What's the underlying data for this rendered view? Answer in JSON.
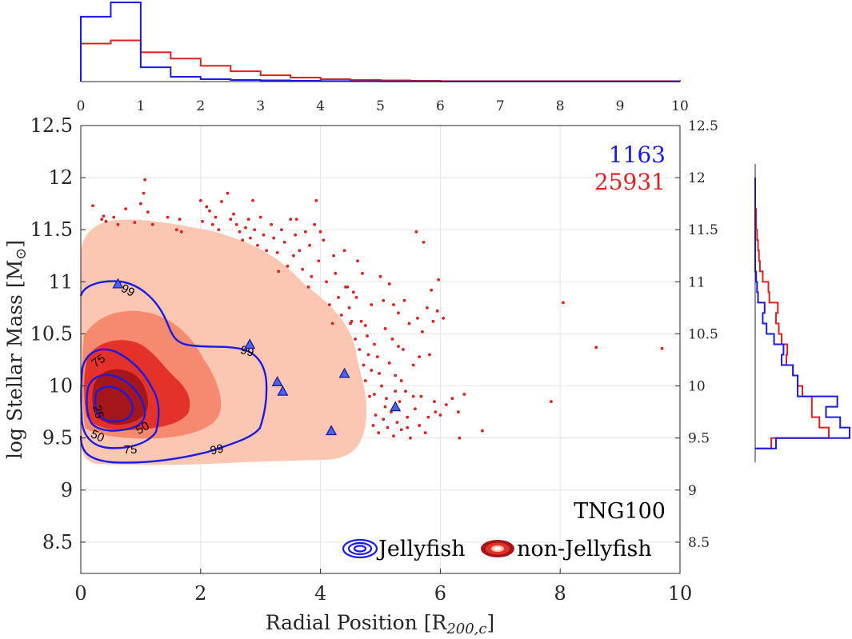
{
  "chart_data": {
    "type": "scatter",
    "xlabel": "Radial Position [R",
    "xlabel_sub": "200,c",
    "xlabel_close": "]",
    "ylabel": "log Stellar Mass [M",
    "ylabel_close": "]",
    "xlim": [
      0,
      10
    ],
    "ylim": [
      8.2,
      12.5
    ],
    "x_ticks": [
      "0",
      "2",
      "4",
      "6",
      "8",
      "10"
    ],
    "y_ticks": [
      "12.5",
      "12",
      "11.5",
      "11",
      "10.5",
      "10",
      "9.5",
      "9",
      "8.5"
    ],
    "top_hist_ticks": [
      "0",
      "1",
      "2",
      "3",
      "4",
      "5",
      "6",
      "7",
      "8",
      "9",
      "10"
    ],
    "right_ticks": [
      "12.5",
      "12",
      "11.5",
      "11",
      "10.5",
      "10",
      "9.5",
      "9",
      "8.5"
    ],
    "grid": true,
    "counts": {
      "jellyfish": "1163",
      "non_jellyfish": "25931"
    },
    "annotation": "TNG100",
    "legend": {
      "jellyfish": "Jellyfish",
      "non_jellyfish": "non-Jellyfish",
      "placement": "bottom-right"
    },
    "colors": {
      "jellyfish": "#1a1ae6",
      "non_jellyfish": "#e01f1f",
      "fill_outer": "#fbc6b2",
      "fill_2": "#f58a6f",
      "fill_3": "#e4322b",
      "fill_inner": "#a5161a",
      "grid": "#e4e4e4"
    },
    "contour_labels": [
      "99",
      "99",
      "99",
      "75",
      "75",
      "50",
      "50",
      "25"
    ],
    "series": [
      {
        "name": "non-Jellyfish",
        "points": [
          [
            0.2,
            11.73
          ],
          [
            0.35,
            11.6
          ],
          [
            0.38,
            11.63
          ],
          [
            0.42,
            11.58
          ],
          [
            0.55,
            11.62
          ],
          [
            0.62,
            11.55
          ],
          [
            0.75,
            11.7
          ],
          [
            0.9,
            11.57
          ],
          [
            1.0,
            11.75
          ],
          [
            1.05,
            11.85
          ],
          [
            1.07,
            11.98
          ],
          [
            1.12,
            11.67
          ],
          [
            1.2,
            11.55
          ],
          [
            1.45,
            11.62
          ],
          [
            1.6,
            11.5
          ],
          [
            1.65,
            11.6
          ],
          [
            1.68,
            11.48
          ],
          [
            2.0,
            11.78
          ],
          [
            2.03,
            11.58
          ],
          [
            2.1,
            11.72
          ],
          [
            2.15,
            11.68
          ],
          [
            2.2,
            11.55
          ],
          [
            2.25,
            11.62
          ],
          [
            2.3,
            11.5
          ],
          [
            2.35,
            11.77
          ],
          [
            2.45,
            11.85
          ],
          [
            2.5,
            11.6
          ],
          [
            2.6,
            11.55
          ],
          [
            2.65,
            11.48
          ],
          [
            2.75,
            11.52
          ],
          [
            2.8,
            11.6
          ],
          [
            2.83,
            11.42
          ],
          [
            2.87,
            11.78
          ],
          [
            2.9,
            11.5
          ],
          [
            2.95,
            11.35
          ],
          [
            3.05,
            11.45
          ],
          [
            3.1,
            11.3
          ],
          [
            3.18,
            11.55
          ],
          [
            3.22,
            11.42
          ],
          [
            3.28,
            11.28
          ],
          [
            3.35,
            11.5
          ],
          [
            3.4,
            11.38
          ],
          [
            3.45,
            11.15
          ],
          [
            3.5,
            11.6
          ],
          [
            3.55,
            11.25
          ],
          [
            3.58,
            11.45
          ],
          [
            3.65,
            11.3
          ],
          [
            3.7,
            11.12
          ],
          [
            3.75,
            11.48
          ],
          [
            3.82,
            11.35
          ],
          [
            3.85,
            11.05
          ],
          [
            3.9,
            11.55
          ],
          [
            3.93,
            11.78
          ],
          [
            3.97,
            11.2
          ],
          [
            4.05,
            11.4
          ],
          [
            4.1,
            11.0
          ],
          [
            4.15,
            10.78
          ],
          [
            4.22,
            11.25
          ],
          [
            4.25,
            11.08
          ],
          [
            4.3,
            10.85
          ],
          [
            4.35,
            10.68
          ],
          [
            4.4,
            11.3
          ],
          [
            4.42,
            10.95
          ],
          [
            4.48,
            10.75
          ],
          [
            4.5,
            10.6
          ],
          [
            4.55,
            10.9
          ],
          [
            4.58,
            10.45
          ],
          [
            4.62,
            11.2
          ],
          [
            4.65,
            10.35
          ],
          [
            4.68,
            10.62
          ],
          [
            4.72,
            10.2
          ],
          [
            4.75,
            10.05
          ],
          [
            4.78,
            10.48
          ],
          [
            4.8,
            10.3
          ],
          [
            4.82,
            9.9
          ],
          [
            4.85,
            10.15
          ],
          [
            4.88,
            9.62
          ],
          [
            4.9,
            10.4
          ],
          [
            4.92,
            9.72
          ],
          [
            4.95,
            10.28
          ],
          [
            4.97,
            9.55
          ],
          [
            5.0,
            11.05
          ],
          [
            5.02,
            10.0
          ],
          [
            5.05,
            9.68
          ],
          [
            5.08,
            10.55
          ],
          [
            5.1,
            9.88
          ],
          [
            5.12,
            9.6
          ],
          [
            5.15,
            10.22
          ],
          [
            5.18,
            9.75
          ],
          [
            5.2,
            10.45
          ],
          [
            5.22,
            9.52
          ],
          [
            5.25,
            10.1
          ],
          [
            5.28,
            9.65
          ],
          [
            5.3,
            10.7
          ],
          [
            5.32,
            9.85
          ],
          [
            5.35,
            9.58
          ],
          [
            5.38,
            10.35
          ],
          [
            5.4,
            10.82
          ],
          [
            5.42,
            9.95
          ],
          [
            5.45,
            9.7
          ],
          [
            5.48,
            10.6
          ],
          [
            5.5,
            9.5
          ],
          [
            5.55,
            10.2
          ],
          [
            5.58,
            9.78
          ],
          [
            5.6,
            11.48
          ],
          [
            5.62,
            10.65
          ],
          [
            5.65,
            9.62
          ],
          [
            5.68,
            9.9
          ],
          [
            5.7,
            10.52
          ],
          [
            5.72,
            11.38
          ],
          [
            5.75,
            9.55
          ],
          [
            5.78,
            10.75
          ],
          [
            5.8,
            9.7
          ],
          [
            5.82,
            10.3
          ],
          [
            5.85,
            10.92
          ],
          [
            5.88,
            10.62
          ],
          [
            5.9,
            9.85
          ],
          [
            5.92,
            9.75
          ],
          [
            5.95,
            10.72
          ],
          [
            5.97,
            11.02
          ],
          [
            6.0,
            9.72
          ],
          [
            6.05,
            10.65
          ],
          [
            6.1,
            9.82
          ],
          [
            6.2,
            9.88
          ],
          [
            6.3,
            9.75
          ],
          [
            6.32,
            9.5
          ],
          [
            6.4,
            9.92
          ],
          [
            6.7,
            9.57
          ],
          [
            7.85,
            9.85
          ],
          [
            8.05,
            10.8
          ],
          [
            8.6,
            10.37
          ],
          [
            9.7,
            10.36
          ],
          [
            2.55,
            11.65
          ],
          [
            2.7,
            11.4
          ],
          [
            3.0,
            11.62
          ],
          [
            3.3,
            11.1
          ],
          [
            3.6,
            11.6
          ],
          [
            3.8,
            10.95
          ],
          [
            4.0,
            11.48
          ],
          [
            4.2,
            10.6
          ],
          [
            4.45,
            10.95
          ],
          [
            4.6,
            10.85
          ],
          [
            4.7,
            11.08
          ],
          [
            4.85,
            10.78
          ],
          [
            5.05,
            10.82
          ],
          [
            5.25,
            9.95
          ],
          [
            5.35,
            10.05
          ],
          [
            5.45,
            9.6
          ],
          [
            5.55,
            9.9
          ],
          [
            5.65,
            10.28
          ],
          [
            4.52,
            10.62
          ],
          [
            4.75,
            10.58
          ],
          [
            5.15,
            10.98
          ],
          [
            5.22,
            10.78
          ],
          [
            4.98,
            10.12
          ],
          [
            4.9,
            9.92
          ],
          [
            5.08,
            9.8
          ],
          [
            5.3,
            10.38
          ]
        ]
      },
      {
        "name": "Jellyfish",
        "points": [
          [
            0.62,
            10.98
          ],
          [
            2.82,
            10.4
          ],
          [
            3.28,
            10.04
          ],
          [
            3.37,
            9.95
          ],
          [
            4.4,
            10.12
          ],
          [
            4.18,
            9.57
          ],
          [
            5.25,
            9.8
          ]
        ]
      }
    ],
    "top_hist": {
      "bins": [
        0,
        0.5,
        1,
        1.5,
        2,
        2.5,
        3,
        3.5,
        4,
        4.5,
        5,
        5.5,
        6,
        10
      ],
      "jellyfish": [
        0.82,
        1.0,
        0.18,
        0.06,
        0.03,
        0.02,
        0.015,
        0.01,
        0.006,
        0.004,
        0.002,
        0.002,
        0.001
      ],
      "non_jellyfish": [
        0.48,
        0.52,
        0.37,
        0.29,
        0.2,
        0.13,
        0.08,
        0.05,
        0.03,
        0.02,
        0.015,
        0.01,
        0.006
      ]
    },
    "right_hist": {
      "bins": [
        9.4,
        9.5,
        9.6,
        9.7,
        9.8,
        9.9,
        10.0,
        10.1,
        10.2,
        10.3,
        10.4,
        10.5,
        10.6,
        10.7,
        10.8,
        10.9,
        11.0,
        11.1,
        11.2,
        11.3,
        11.4,
        11.5,
        11.6,
        11.7,
        11.8,
        11.9,
        12.0
      ],
      "jellyfish": [
        0.22,
        1.0,
        0.9,
        0.75,
        0.87,
        0.45,
        0.45,
        0.4,
        0.28,
        0.3,
        0.2,
        0.12,
        0.08,
        0.1,
        0.03,
        0.02,
        0.01,
        0.0,
        0.0,
        0.0,
        0.0,
        0.0,
        0.0,
        0.0,
        0.0,
        0.0
      ],
      "non_jellyfish": [
        0.17,
        0.78,
        0.68,
        0.6,
        0.6,
        0.5,
        0.45,
        0.4,
        0.33,
        0.34,
        0.28,
        0.25,
        0.22,
        0.24,
        0.15,
        0.14,
        0.08,
        0.05,
        0.04,
        0.03,
        0.02,
        0.01,
        0.01,
        0.0,
        0.0,
        0.0
      ]
    }
  }
}
